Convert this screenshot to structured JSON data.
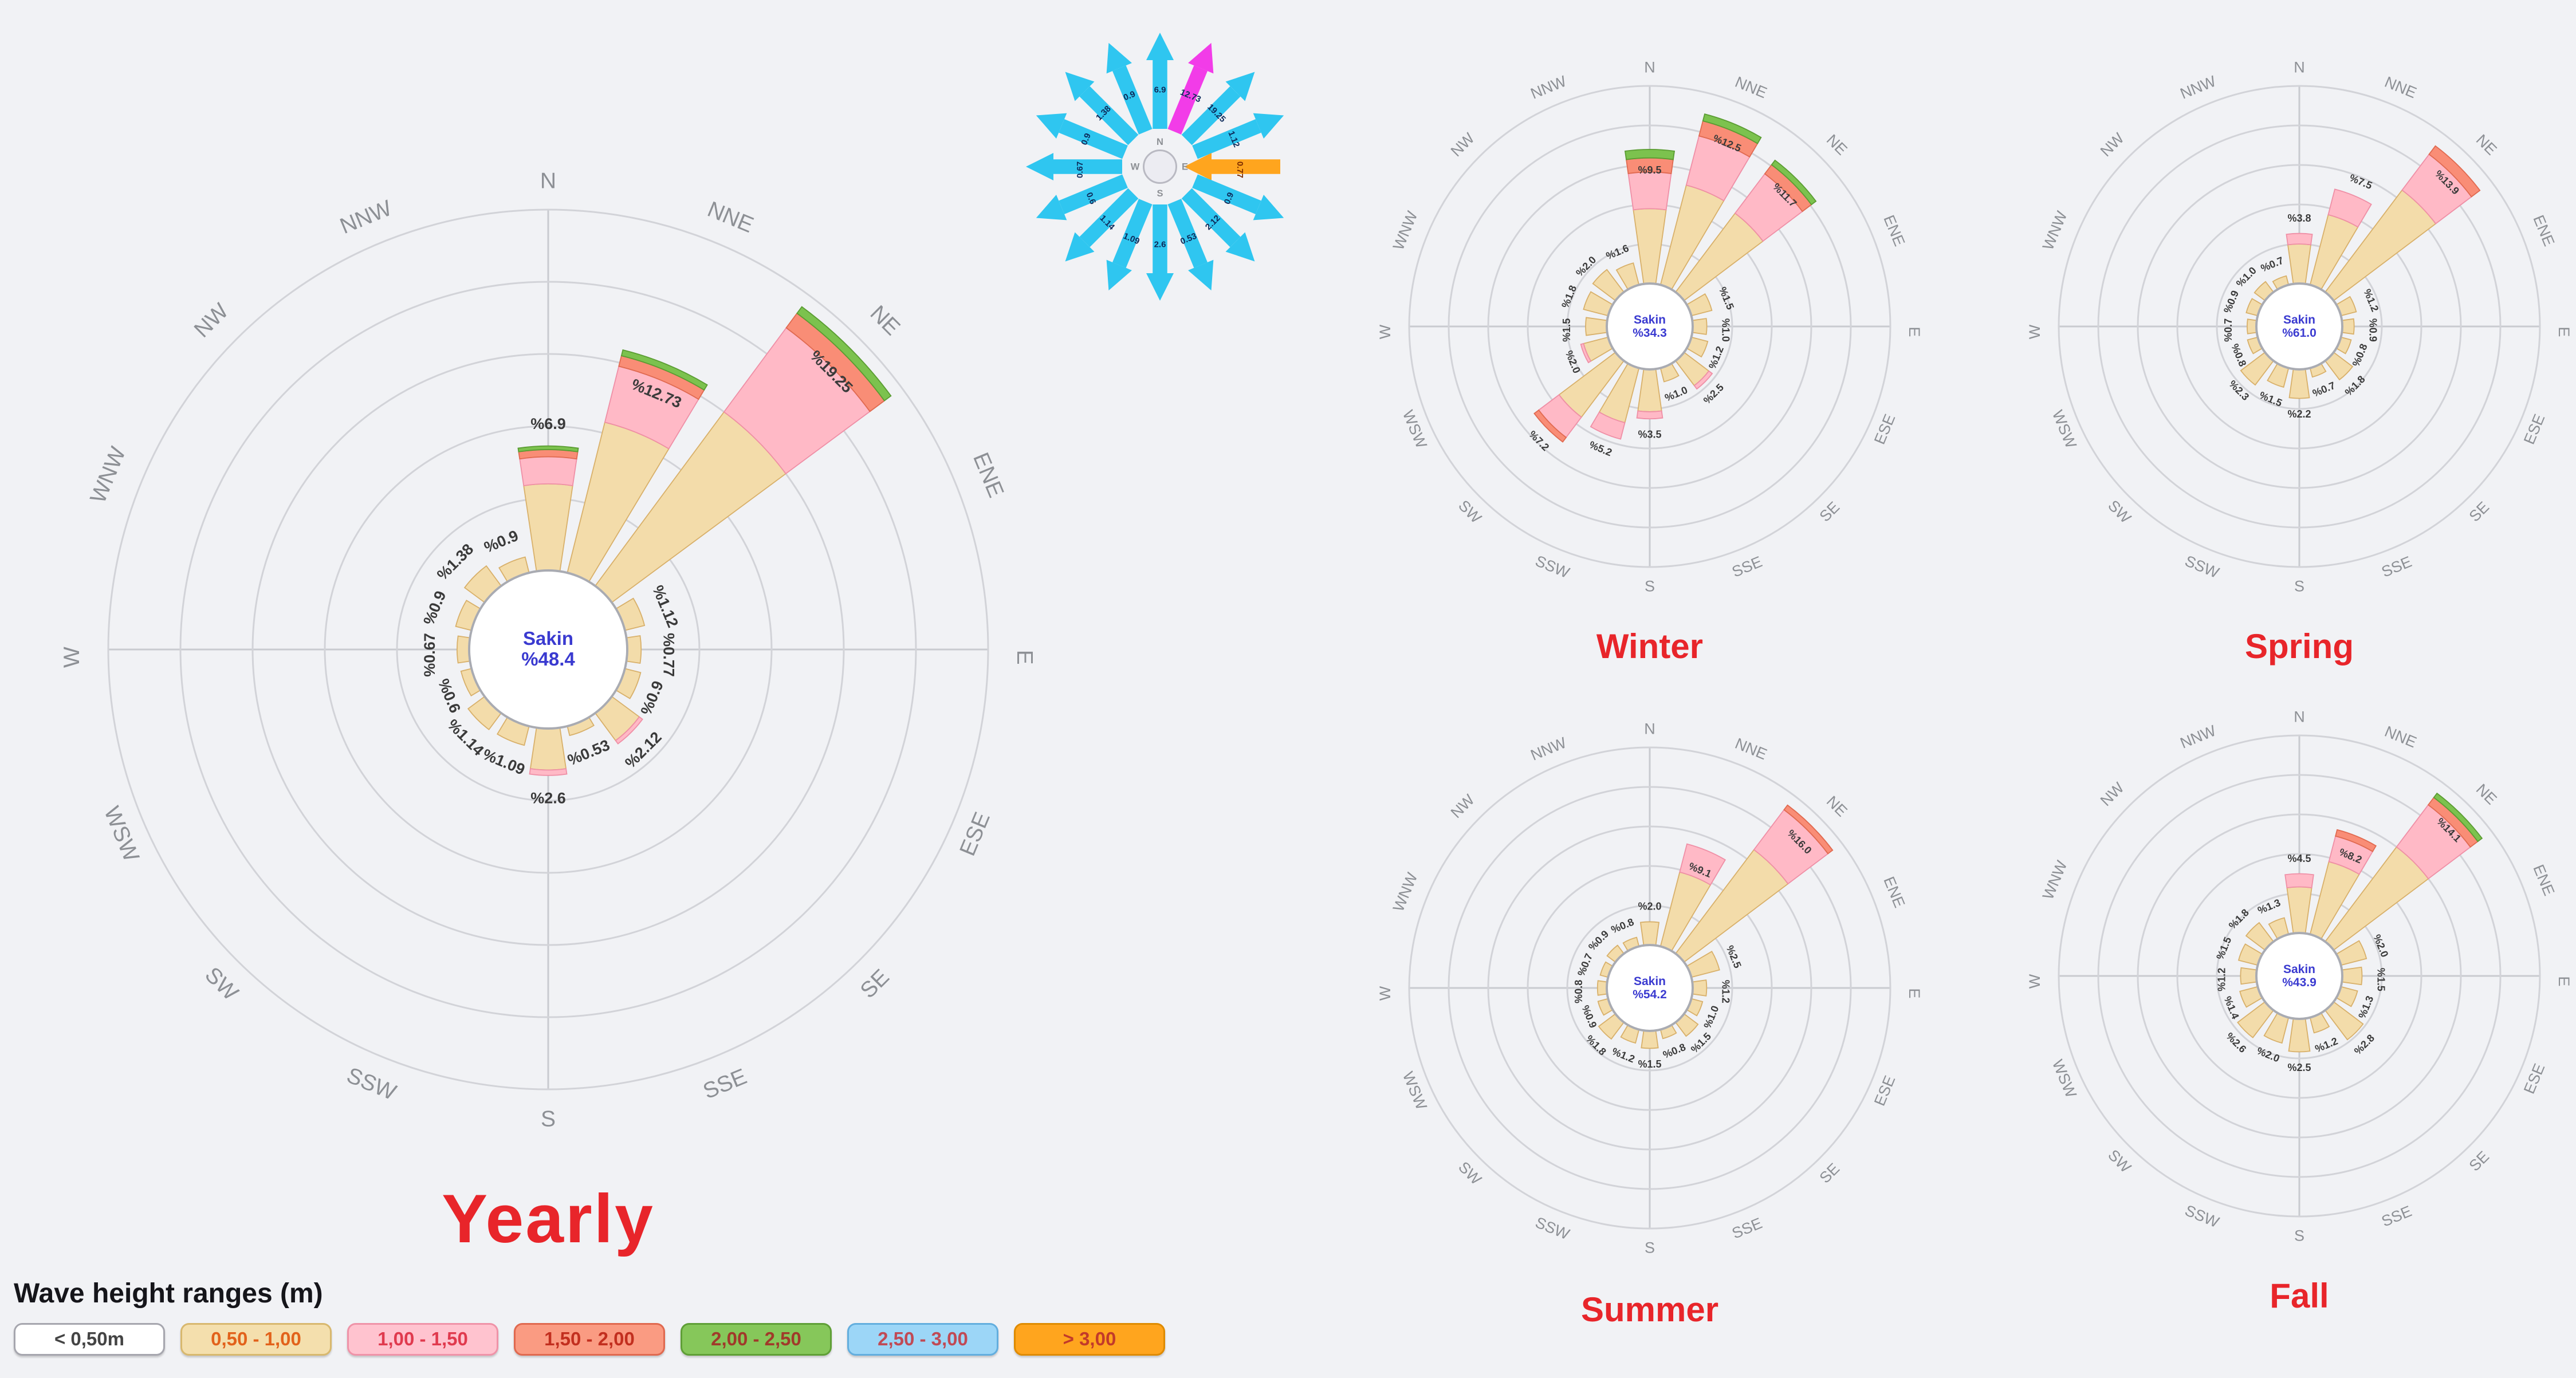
{
  "page": {
    "background": "#f1f2f5"
  },
  "legend": {
    "title": "Wave height ranges (m)",
    "items": [
      {
        "label": "< 0,50m",
        "fill": "#ffffff",
        "border": "#a6a6ae",
        "text": "#444444"
      },
      {
        "label": "0,50 - 1,00",
        "fill": "#f4dfad",
        "border": "#d8b86e",
        "text": "#e2621b"
      },
      {
        "label": "1,00 - 1,50",
        "fill": "#ffc3cf",
        "border": "#ef93a8",
        "text": "#e03a4e"
      },
      {
        "label": "1,50 - 2,00",
        "fill": "#fa9b82",
        "border": "#e0694f",
        "text": "#c22f1f"
      },
      {
        "label": "2,00 - 2,50",
        "fill": "#86c75a",
        "border": "#5f9f36",
        "text": "#a03a2a"
      },
      {
        "label": "2,50 - 3,00",
        "fill": "#9cd6f7",
        "border": "#63aede",
        "text": "#c04a55"
      },
      {
        "label": "> 3,00",
        "fill": "#ffa51e",
        "border": "#df8b00",
        "text": "#c23a2a"
      }
    ]
  },
  "compass": {
    "arrow_color": "#2fc6f0",
    "highlight_nne_color": "#f23ce8",
    "highlight_e_color": "#ffa51e",
    "labels": [
      "6.9",
      "12.73",
      "19.25",
      "1.12",
      "0.77",
      "0.9",
      "2.12",
      "0.53",
      "2.6",
      "1.09",
      "1.14",
      "0.6",
      "0.67",
      "0.9",
      "1.38",
      "0.9"
    ],
    "center_letters": [
      "N",
      "E",
      "S",
      "W"
    ]
  },
  "chart_data": {
    "type": "wave-rose (polar stacked bar)",
    "directions": [
      "N",
      "NNE",
      "NE",
      "ENE",
      "E",
      "ESE",
      "SE",
      "SSE",
      "S",
      "SSW",
      "SW",
      "WSW",
      "W",
      "WNW",
      "NW",
      "NNW"
    ],
    "petal_bands": [
      "0,50 - 1,00",
      "1,00 - 1,50",
      "1,50 - 2,00",
      "2,00 - 2,50",
      "2,50 - 3,00",
      "> 3,00"
    ],
    "band_colors": [
      "#f3dcaa",
      "#ffb9c6",
      "#f98d76",
      "#7cc24e",
      "#9cd6f7",
      "#ffa51e"
    ],
    "calm_band_label": "< 0,50m",
    "roses": [
      {
        "id": "yearly",
        "title": "Yearly",
        "calm_label": "Sakin",
        "calm_value": "%48.4",
        "axis_max": 20,
        "values": [
          6.9,
          12.73,
          19.25,
          1.12,
          0.77,
          0.9,
          2.12,
          0.53,
          2.6,
          1.09,
          1.14,
          0.6,
          0.67,
          0.9,
          1.38,
          0.9
        ],
        "labels": [
          "%6.9",
          "%12.73",
          "%19.25",
          "%1.12",
          "%0.77",
          "%0.9",
          "%2.12",
          "%0.53",
          "%2.6",
          "%1.09",
          "%1.14",
          "%0.6",
          "%0.67",
          "%0.9",
          "%1.38",
          "%0.9"
        ],
        "stacks": [
          [
            4.8,
            1.5,
            0.4,
            0.2
          ],
          [
            8.6,
            3.2,
            0.6,
            0.33
          ],
          [
            12.0,
            5.8,
            1.0,
            0.45
          ],
          [
            1.12
          ],
          [
            0.77
          ],
          [
            0.9
          ],
          [
            1.9,
            0.22
          ],
          [
            0.53
          ],
          [
            2.3,
            0.3
          ],
          [
            1.09
          ],
          [
            1.14
          ],
          [
            0.6
          ],
          [
            0.67
          ],
          [
            0.9
          ],
          [
            1.38
          ],
          [
            0.9
          ]
        ]
      },
      {
        "id": "winter",
        "title": "Winter",
        "calm_label": "Sakin",
        "calm_value": "%34.3",
        "axis_max": 14,
        "values": [
          9.5,
          12.5,
          11.7,
          1.5,
          1.0,
          1.2,
          2.5,
          1.0,
          3.5,
          5.2,
          7.2,
          2.0,
          1.5,
          1.8,
          2.0,
          1.6
        ],
        "labels": [
          "%9.5",
          "%12.5",
          "%11.7",
          "%1.5",
          "%1.0",
          "%1.2",
          "%2.5",
          "%1.0",
          "%3.5",
          "%5.2",
          "%7.2",
          "%2.0",
          "%1.5",
          "%1.8",
          "%2.0",
          "%1.6"
        ],
        "stacks": [
          [
            5.3,
            2.6,
            1.0,
            0.6
          ],
          [
            7.3,
            3.6,
            1.1,
            0.5
          ],
          [
            7.0,
            3.5,
            0.8,
            0.4
          ],
          [
            1.5
          ],
          [
            1.0
          ],
          [
            1.2
          ],
          [
            2.2,
            0.3
          ],
          [
            1.0
          ],
          [
            3.0,
            0.5
          ],
          [
            4.0,
            1.2
          ],
          [
            5.0,
            1.8,
            0.4
          ],
          [
            1.8,
            0.2
          ],
          [
            1.5
          ],
          [
            1.8
          ],
          [
            2.0
          ],
          [
            1.6
          ]
        ]
      },
      {
        "id": "spring",
        "title": "Spring",
        "calm_label": "Sakin",
        "calm_value": "%61.0",
        "axis_max": 15,
        "values": [
          3.8,
          7.5,
          13.9,
          1.2,
          0.9,
          0.8,
          1.8,
          0.7,
          2.2,
          1.5,
          2.3,
          0.8,
          0.7,
          0.9,
          1.0,
          0.7
        ],
        "labels": [
          "%3.8",
          "%7.5",
          "%13.9",
          "%1.2",
          "%0.9",
          "%0.8",
          "%1.8",
          "%0.7",
          "%2.2",
          "%1.5",
          "%2.3",
          "%0.8",
          "%0.7",
          "%0.9",
          "%1.0",
          "%0.7"
        ],
        "stacks": [
          [
            3.0,
            0.8
          ],
          [
            5.5,
            2.0
          ],
          [
            9.7,
            3.4,
            0.8
          ],
          [
            1.2
          ],
          [
            0.9
          ],
          [
            0.8
          ],
          [
            1.8
          ],
          [
            0.7
          ],
          [
            2.2
          ],
          [
            1.5
          ],
          [
            2.3
          ],
          [
            0.8
          ],
          [
            0.7
          ],
          [
            0.9
          ],
          [
            1.0
          ],
          [
            0.7
          ]
        ]
      },
      {
        "id": "summer",
        "title": "Summer",
        "calm_label": "Sakin",
        "calm_value": "%54.2",
        "axis_max": 17,
        "values": [
          2.0,
          9.1,
          16.0,
          2.5,
          1.2,
          1.0,
          1.5,
          0.8,
          1.5,
          1.2,
          1.8,
          0.9,
          0.8,
          0.7,
          0.9,
          0.8
        ],
        "labels": [
          "%2.0",
          "%9.1",
          "%16.0",
          "%2.5",
          "%1.2",
          "%1.0",
          "%1.5",
          "%0.8",
          "%1.5",
          "%1.2",
          "%1.8",
          "%0.9",
          "%0.8",
          "%0.7",
          "%0.9",
          "%0.8"
        ],
        "stacks": [
          [
            2.0
          ],
          [
            6.6,
            2.5
          ],
          [
            11.2,
            4.3,
            0.5
          ],
          [
            2.5
          ],
          [
            1.2
          ],
          [
            1.0
          ],
          [
            1.5
          ],
          [
            0.8
          ],
          [
            1.5
          ],
          [
            1.2
          ],
          [
            1.8
          ],
          [
            0.9
          ],
          [
            0.8
          ],
          [
            0.7
          ],
          [
            0.9
          ],
          [
            0.8
          ]
        ]
      },
      {
        "id": "fall",
        "title": "Fall",
        "calm_label": "Sakin",
        "calm_value": "%43.9",
        "axis_max": 15,
        "values": [
          4.5,
          8.2,
          14.1,
          2.0,
          1.5,
          1.3,
          2.8,
          1.2,
          2.5,
          2.0,
          2.6,
          1.4,
          1.2,
          1.5,
          1.8,
          1.3
        ],
        "labels": [
          "%4.5",
          "%8.2",
          "%14.1",
          "%2.0",
          "%1.5",
          "%1.3",
          "%2.8",
          "%1.2",
          "%2.5",
          "%2.0",
          "%2.6",
          "%1.4",
          "%1.2",
          "%1.5",
          "%1.8",
          "%1.3"
        ],
        "stacks": [
          [
            3.5,
            1.0
          ],
          [
            5.7,
            2.0,
            0.5
          ],
          [
            9.0,
            4.0,
            0.7,
            0.4
          ],
          [
            2.0
          ],
          [
            1.5
          ],
          [
            1.3
          ],
          [
            2.8
          ],
          [
            1.2
          ],
          [
            2.5
          ],
          [
            2.0
          ],
          [
            2.6
          ],
          [
            1.4
          ],
          [
            1.2
          ],
          [
            1.5
          ],
          [
            1.8
          ],
          [
            1.3
          ]
        ]
      }
    ]
  }
}
